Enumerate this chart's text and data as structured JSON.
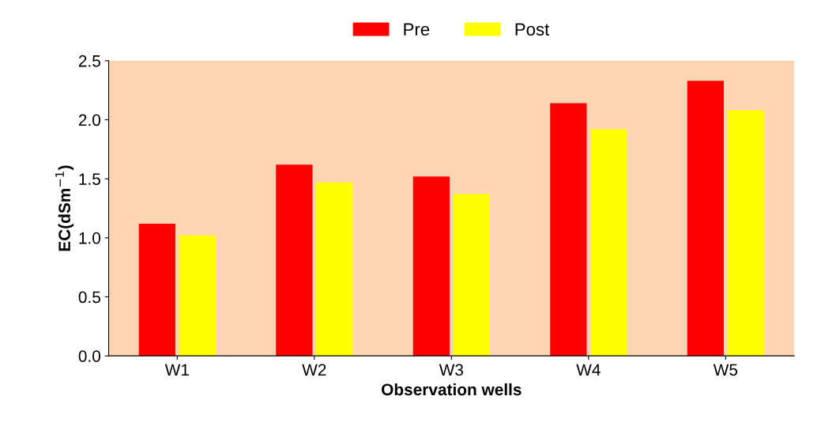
{
  "chart_data": {
    "type": "bar",
    "xlabel": "Observation wells",
    "ylabel": "EC(dSm$^{−1}$)",
    "categories": [
      "W1",
      "W2",
      "W3",
      "W4",
      "W5"
    ],
    "series": [
      {
        "name": "Pre",
        "color": "#ff0000",
        "values": [
          1.12,
          1.62,
          1.52,
          2.14,
          2.33
        ]
      },
      {
        "name": "Post",
        "color": "#ffff00",
        "values": [
          1.02,
          1.47,
          1.37,
          1.92,
          2.08
        ]
      }
    ],
    "ylim": [
      0,
      2.5
    ],
    "yticks": [
      {
        "value": 0,
        "label": "0.0"
      },
      {
        "value": 0.5,
        "label": "0.5"
      },
      {
        "value": 1,
        "label": "1.0"
      },
      {
        "value": 1.5,
        "label": "1.5"
      },
      {
        "value": 2,
        "label": "2.0"
      },
      {
        "value": 2.5,
        "label": "2.5"
      }
    ],
    "grid": false,
    "legend": "top"
  }
}
